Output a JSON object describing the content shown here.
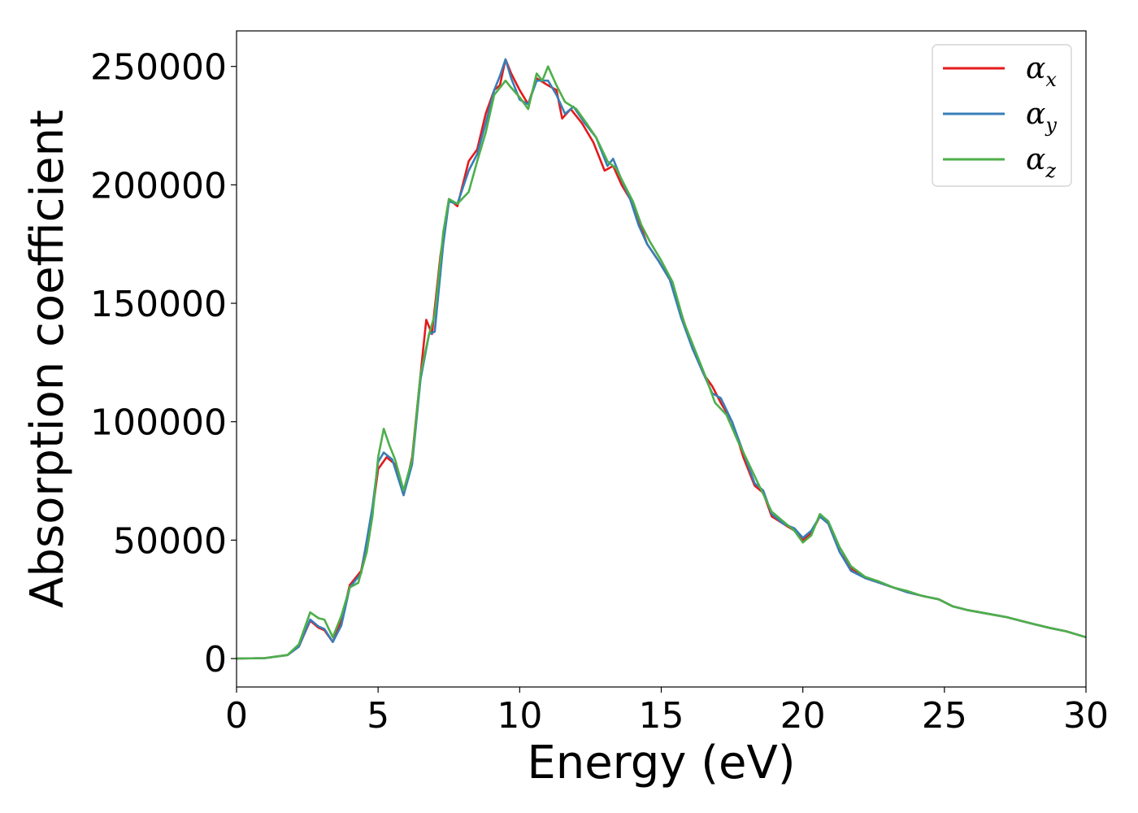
{
  "chart_data": {
    "type": "line",
    "title": "",
    "xlabel": "Energy (eV)",
    "ylabel": "Absorption coefficient",
    "xlim": [
      0,
      30
    ],
    "ylim": [
      -12000,
      265000
    ],
    "xticks": [
      0,
      5,
      10,
      15,
      20,
      25,
      30
    ],
    "yticks": [
      0,
      50000,
      100000,
      150000,
      200000,
      250000
    ],
    "xtick_labels": [
      "0",
      "5",
      "10",
      "15",
      "20",
      "25",
      "30"
    ],
    "ytick_labels": [
      "0",
      "50000",
      "100000",
      "150000",
      "200000",
      "250000"
    ],
    "grid": false,
    "legend_position": "top-right",
    "series": [
      {
        "name": "α",
        "sub": "x",
        "color": "#e41a1c",
        "points": [
          [
            0,
            0
          ],
          [
            1,
            200
          ],
          [
            1.8,
            1500
          ],
          [
            2.2,
            5000
          ],
          [
            2.6,
            16000
          ],
          [
            2.9,
            13000
          ],
          [
            3.1,
            12000
          ],
          [
            3.4,
            7000
          ],
          [
            3.7,
            16000
          ],
          [
            4.0,
            31000
          ],
          [
            4.4,
            37000
          ],
          [
            4.8,
            62000
          ],
          [
            5.0,
            80000
          ],
          [
            5.3,
            85000
          ],
          [
            5.6,
            82000
          ],
          [
            5.9,
            69000
          ],
          [
            6.2,
            85000
          ],
          [
            6.5,
            120000
          ],
          [
            6.7,
            143000
          ],
          [
            6.9,
            137000
          ],
          [
            7.2,
            170000
          ],
          [
            7.5,
            194000
          ],
          [
            7.8,
            191000
          ],
          [
            8.2,
            210000
          ],
          [
            8.5,
            215000
          ],
          [
            8.8,
            230000
          ],
          [
            9.1,
            240000
          ],
          [
            9.3,
            242000
          ],
          [
            9.5,
            253000
          ],
          [
            9.7,
            247000
          ],
          [
            10.0,
            240000
          ],
          [
            10.3,
            234000
          ],
          [
            10.6,
            245000
          ],
          [
            11.0,
            242000
          ],
          [
            11.3,
            240000
          ],
          [
            11.5,
            228000
          ],
          [
            11.8,
            232000
          ],
          [
            12.2,
            226000
          ],
          [
            12.6,
            218000
          ],
          [
            13.0,
            206000
          ],
          [
            13.3,
            208000
          ],
          [
            13.6,
            200000
          ],
          [
            13.9,
            194000
          ],
          [
            14.2,
            185000
          ],
          [
            14.5,
            175000
          ],
          [
            14.9,
            168000
          ],
          [
            15.3,
            160000
          ],
          [
            15.7,
            146000
          ],
          [
            16.1,
            131000
          ],
          [
            16.5,
            120000
          ],
          [
            16.8,
            115000
          ],
          [
            17.1,
            108000
          ],
          [
            17.5,
            100000
          ],
          [
            17.9,
            85000
          ],
          [
            18.3,
            73000
          ],
          [
            18.6,
            70000
          ],
          [
            18.9,
            60000
          ],
          [
            19.3,
            57000
          ],
          [
            19.7,
            54000
          ],
          [
            20.0,
            50000
          ],
          [
            20.3,
            53000
          ],
          [
            20.6,
            60000
          ],
          [
            20.9,
            57000
          ],
          [
            21.3,
            45000
          ],
          [
            21.7,
            38000
          ],
          [
            22.2,
            34000
          ],
          [
            22.7,
            32000
          ],
          [
            23.2,
            30000
          ],
          [
            23.7,
            28000
          ],
          [
            24.2,
            26500
          ],
          [
            24.8,
            25000
          ],
          [
            25.3,
            22000
          ],
          [
            25.8,
            20500
          ],
          [
            26.5,
            19000
          ],
          [
            27.2,
            17500
          ],
          [
            28.0,
            15000
          ],
          [
            28.7,
            13000
          ],
          [
            29.3,
            11500
          ],
          [
            30,
            9000
          ]
        ]
      },
      {
        "name": "α",
        "sub": "y",
        "color": "#377eb8",
        "points": [
          [
            0,
            0
          ],
          [
            1,
            200
          ],
          [
            1.8,
            1500
          ],
          [
            2.2,
            5000
          ],
          [
            2.6,
            16500
          ],
          [
            2.9,
            13500
          ],
          [
            3.1,
            12500
          ],
          [
            3.4,
            7000
          ],
          [
            3.7,
            14000
          ],
          [
            4.0,
            30000
          ],
          [
            4.4,
            36000
          ],
          [
            4.8,
            64000
          ],
          [
            5.0,
            83000
          ],
          [
            5.2,
            87000
          ],
          [
            5.5,
            84000
          ],
          [
            5.9,
            69000
          ],
          [
            6.2,
            82000
          ],
          [
            6.5,
            118000
          ],
          [
            6.8,
            137000
          ],
          [
            7.0,
            138000
          ],
          [
            7.3,
            175000
          ],
          [
            7.5,
            193000
          ],
          [
            7.8,
            192000
          ],
          [
            8.2,
            206000
          ],
          [
            8.5,
            213000
          ],
          [
            8.8,
            226000
          ],
          [
            9.1,
            240000
          ],
          [
            9.3,
            246000
          ],
          [
            9.5,
            253000
          ],
          [
            9.7,
            245000
          ],
          [
            10.0,
            236000
          ],
          [
            10.3,
            234000
          ],
          [
            10.6,
            244000
          ],
          [
            11.0,
            244000
          ],
          [
            11.3,
            238000
          ],
          [
            11.6,
            230000
          ],
          [
            11.9,
            233000
          ],
          [
            12.3,
            226000
          ],
          [
            12.7,
            220000
          ],
          [
            13.1,
            208000
          ],
          [
            13.3,
            211000
          ],
          [
            13.6,
            202000
          ],
          [
            13.9,
            194000
          ],
          [
            14.2,
            183000
          ],
          [
            14.5,
            175000
          ],
          [
            14.9,
            168000
          ],
          [
            15.3,
            160000
          ],
          [
            15.7,
            144000
          ],
          [
            16.1,
            131000
          ],
          [
            16.5,
            120000
          ],
          [
            16.8,
            112000
          ],
          [
            17.1,
            110000
          ],
          [
            17.5,
            100000
          ],
          [
            17.9,
            87000
          ],
          [
            18.3,
            74000
          ],
          [
            18.6,
            71000
          ],
          [
            18.9,
            61000
          ],
          [
            19.3,
            57000
          ],
          [
            19.7,
            55000
          ],
          [
            20.0,
            51000
          ],
          [
            20.3,
            54000
          ],
          [
            20.6,
            60000
          ],
          [
            20.9,
            57000
          ],
          [
            21.3,
            45000
          ],
          [
            21.7,
            37000
          ],
          [
            22.2,
            34000
          ],
          [
            22.7,
            32000
          ],
          [
            23.2,
            30000
          ],
          [
            23.7,
            28000
          ],
          [
            24.2,
            26500
          ],
          [
            24.8,
            25000
          ],
          [
            25.3,
            22000
          ],
          [
            25.8,
            20500
          ],
          [
            26.5,
            19000
          ],
          [
            27.2,
            17500
          ],
          [
            28.0,
            15000
          ],
          [
            28.7,
            13000
          ],
          [
            29.3,
            11500
          ],
          [
            30,
            9000
          ]
        ]
      },
      {
        "name": "α",
        "sub": "z",
        "color": "#4daf4a",
        "points": [
          [
            0,
            0
          ],
          [
            1,
            200
          ],
          [
            1.8,
            1500
          ],
          [
            2.2,
            6000
          ],
          [
            2.6,
            19500
          ],
          [
            2.9,
            17000
          ],
          [
            3.1,
            16500
          ],
          [
            3.4,
            9000
          ],
          [
            3.7,
            18000
          ],
          [
            4.0,
            30000
          ],
          [
            4.3,
            32000
          ],
          [
            4.6,
            45000
          ],
          [
            4.8,
            60000
          ],
          [
            5.0,
            85000
          ],
          [
            5.2,
            97000
          ],
          [
            5.4,
            90000
          ],
          [
            5.6,
            84000
          ],
          [
            5.9,
            71000
          ],
          [
            6.2,
            84000
          ],
          [
            6.5,
            120000
          ],
          [
            6.8,
            137000
          ],
          [
            7.0,
            145000
          ],
          [
            7.3,
            180000
          ],
          [
            7.5,
            194000
          ],
          [
            7.8,
            192000
          ],
          [
            8.2,
            197000
          ],
          [
            8.5,
            210000
          ],
          [
            8.8,
            222000
          ],
          [
            9.1,
            238000
          ],
          [
            9.3,
            241000
          ],
          [
            9.5,
            244000
          ],
          [
            9.7,
            241000
          ],
          [
            10.0,
            237000
          ],
          [
            10.3,
            232000
          ],
          [
            10.6,
            247000
          ],
          [
            10.8,
            244000
          ],
          [
            11.0,
            250000
          ],
          [
            11.3,
            242000
          ],
          [
            11.6,
            235000
          ],
          [
            12.0,
            232000
          ],
          [
            12.3,
            227000
          ],
          [
            12.7,
            220000
          ],
          [
            13.1,
            210000
          ],
          [
            13.4,
            207000
          ],
          [
            13.7,
            200000
          ],
          [
            14.0,
            193000
          ],
          [
            14.3,
            183000
          ],
          [
            14.6,
            176000
          ],
          [
            15.0,
            168000
          ],
          [
            15.4,
            159000
          ],
          [
            15.8,
            142000
          ],
          [
            16.2,
            130000
          ],
          [
            16.6,
            118000
          ],
          [
            16.9,
            108000
          ],
          [
            17.3,
            103000
          ],
          [
            17.7,
            92000
          ],
          [
            18.1,
            82000
          ],
          [
            18.5,
            72000
          ],
          [
            18.9,
            62000
          ],
          [
            19.3,
            58000
          ],
          [
            19.7,
            54000
          ],
          [
            20.0,
            49000
          ],
          [
            20.3,
            52000
          ],
          [
            20.6,
            61000
          ],
          [
            20.9,
            58000
          ],
          [
            21.3,
            47000
          ],
          [
            21.7,
            39000
          ],
          [
            22.2,
            34500
          ],
          [
            22.7,
            32500
          ],
          [
            23.2,
            30000
          ],
          [
            23.7,
            28500
          ],
          [
            24.2,
            26500
          ],
          [
            24.8,
            25000
          ],
          [
            25.3,
            22000
          ],
          [
            25.8,
            20500
          ],
          [
            26.5,
            19000
          ],
          [
            27.2,
            17500
          ],
          [
            28.0,
            15000
          ],
          [
            28.7,
            13000
          ],
          [
            29.3,
            11500
          ],
          [
            30,
            9000
          ]
        ]
      }
    ]
  }
}
